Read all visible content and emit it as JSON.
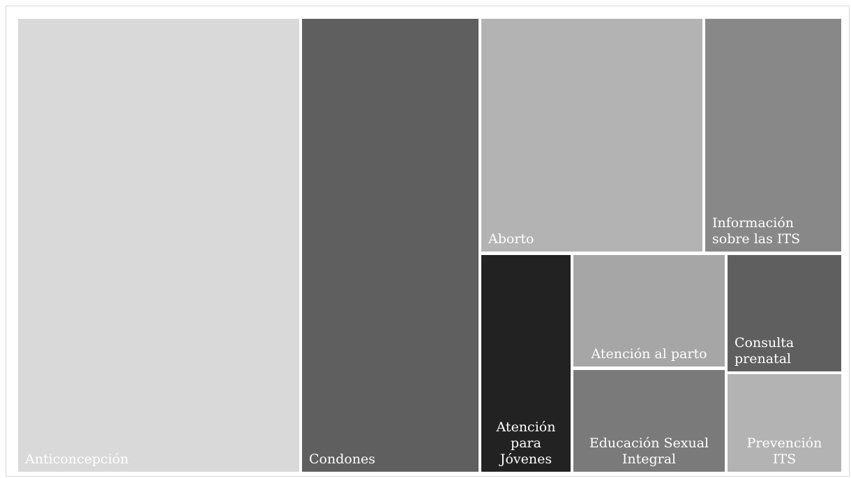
{
  "chart_data": {
    "type": "treemap",
    "title": "",
    "items": [
      {
        "label": "Anticoncepción",
        "color": "#d9d9d9"
      },
      {
        "label": "Condones",
        "color": "#5f5f5f"
      },
      {
        "label": "Aborto",
        "color": "#b3b3b3"
      },
      {
        "label": "Información sobre las ITS",
        "color": "#888888"
      },
      {
        "label": "Atención para Jóvenes",
        "color": "#222222"
      },
      {
        "label": "Atención al parto",
        "color": "#a6a6a6"
      },
      {
        "label": "Consulta prenatal",
        "color": "#5f5f5f"
      },
      {
        "label": "Educación Sexual Integral",
        "color": "#7a7a7a"
      },
      {
        "label": "Prevención ITS",
        "color": "#b3b3b3"
      }
    ]
  }
}
